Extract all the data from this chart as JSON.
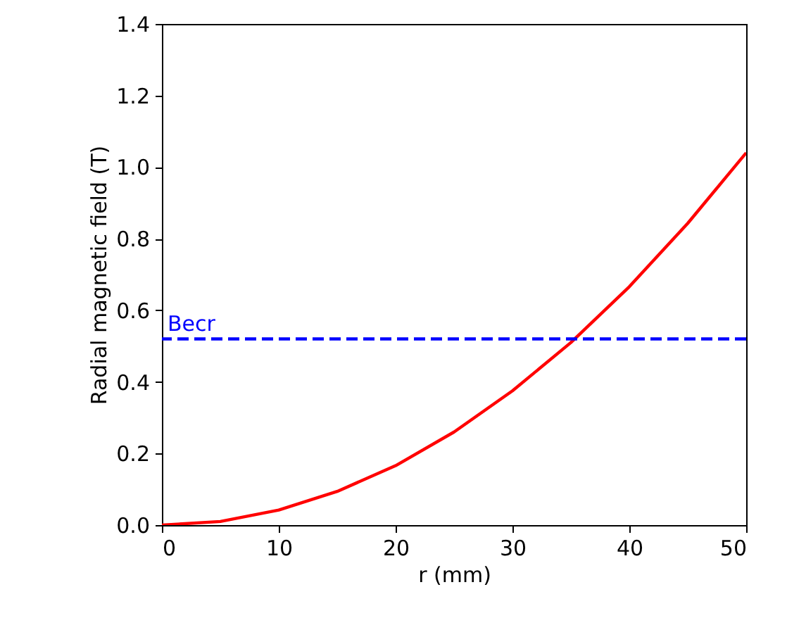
{
  "chart_data": {
    "type": "line",
    "xlabel": "r (mm)",
    "ylabel": "Radial magnetic field (T)",
    "x": [
      0,
      5,
      10,
      15,
      20,
      25,
      30,
      35,
      40,
      45,
      50
    ],
    "series": [
      {
        "color": "#ff0000",
        "values": [
          0,
          0.01,
          0.042,
          0.094,
          0.166,
          0.26,
          0.375,
          0.51,
          0.666,
          0.843,
          1.04
        ]
      }
    ],
    "xlim": [
      0,
      50
    ],
    "xticks": [
      0,
      10,
      20,
      30,
      40,
      50
    ],
    "ylim": [
      0,
      1.4
    ],
    "yticks": [
      {
        "value": 0,
        "label": "0.0"
      },
      {
        "value": 0.2,
        "label": "0.2"
      },
      {
        "value": 0.4,
        "label": "0.4"
      },
      {
        "value": 0.6,
        "label": "0.6"
      },
      {
        "value": 0.8,
        "label": "0.8"
      },
      {
        "value": 1,
        "label": "1.0"
      },
      {
        "value": 1.2,
        "label": "1.2"
      },
      {
        "value": 1.4,
        "label": "1.4"
      }
    ],
    "ref_lines": [
      {
        "axis": "y",
        "value": 0.52,
        "label": "Becr",
        "color": "#0000ff",
        "line_style": "dashed"
      }
    ],
    "grid": false,
    "line_style": "solid",
    "marker": "none"
  }
}
